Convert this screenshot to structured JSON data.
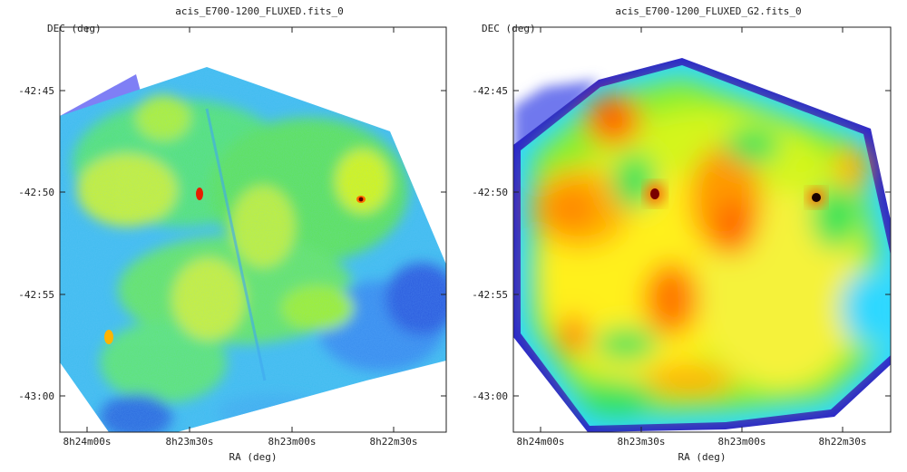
{
  "chart_data": [
    {
      "type": "heatmap",
      "title": "acis_E700-1200_FLUXED.fits_0",
      "xlabel": "RA (deg)",
      "ylabel": "DEC (deg)",
      "x_ticks": [
        "8h24m00s",
        "8h23m30s",
        "8h23m00s",
        "8h22m30s"
      ],
      "y_ticks": [
        "-42:45",
        "-42:50",
        "-42:55",
        "-43:00"
      ],
      "colormap": [
        "#6b6bff",
        "#4fc3ff",
        "#39d9ff",
        "#2fe39a",
        "#8ef02a",
        "#d4f51c",
        "#fff01a",
        "#ffb400",
        "#ff6a00",
        "#e61e00",
        "#7a0000"
      ],
      "smoothing": "none",
      "grid": false
    },
    {
      "type": "heatmap",
      "title": "acis_E700-1200_FLUXED_G2.fits_0",
      "xlabel": "RA (deg)",
      "ylabel": "DEC (deg)",
      "x_ticks": [
        "8h24m00s",
        "8h23m30s",
        "8h23m00s",
        "8h22m30s"
      ],
      "y_ticks": [
        "-42:45",
        "-42:50",
        "-42:55",
        "-43:00"
      ],
      "colormap": [
        "#3b2bd6",
        "#3aa0ff",
        "#2fe3d8",
        "#35e35a",
        "#8ef02a",
        "#d4f51c",
        "#fff01a",
        "#ffb400",
        "#ff6a00",
        "#e61e00",
        "#7a0000"
      ],
      "smoothing": "gaussian",
      "grid": false
    }
  ]
}
